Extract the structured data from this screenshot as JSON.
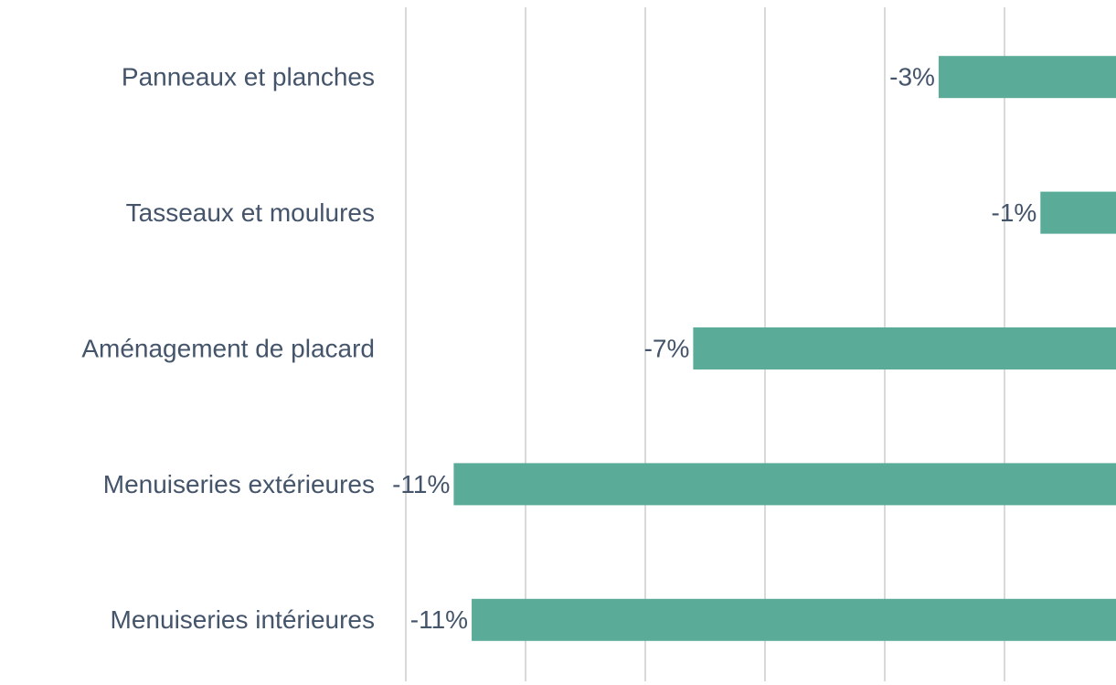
{
  "chart_data": {
    "type": "barh",
    "categories": [
      "Panneaux et planches",
      "Tasseaux et moulures",
      "Aménagement de placard",
      "Menuiseries extérieures",
      "Menuiseries intérieures"
    ],
    "values": [
      -3.1,
      -1.4,
      -7.2,
      -11.2,
      -10.9
    ],
    "value_labels": [
      "-3%",
      "-1%",
      "-7%",
      "-11%",
      "-11%"
    ],
    "color": "#5aab98",
    "xlim": [
      -12,
      0
    ],
    "xticks": [
      -12,
      -10,
      -8,
      -6,
      -4,
      -2,
      0
    ],
    "grid": true
  }
}
